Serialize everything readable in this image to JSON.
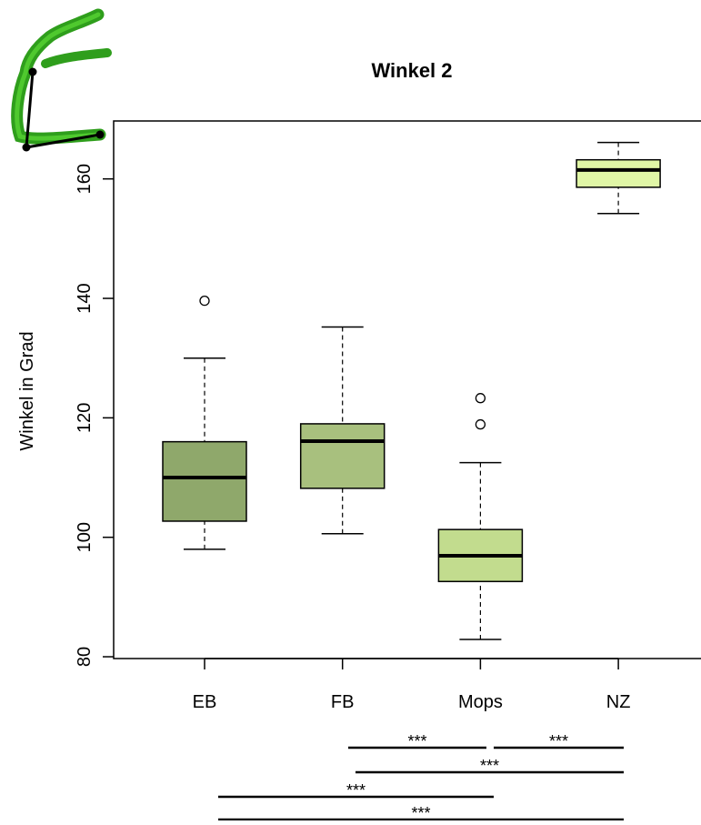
{
  "chart_data": {
    "type": "box",
    "title": "Winkel 2",
    "y_label": "Winkel in Grad",
    "categories": [
      "EB",
      "FB",
      "Mops",
      "NZ"
    ],
    "colors": [
      "#8fa86b",
      "#a8c07e",
      "#c2dc8e",
      "#e0f6a6"
    ],
    "whisker_low": [
      98,
      100.6,
      82.9,
      154.2
    ],
    "q1": [
      102.7,
      108.2,
      92.6,
      158.6
    ],
    "median": [
      110,
      116.1,
      96.9,
      161.5
    ],
    "q3": [
      116,
      119,
      101.3,
      163.2
    ],
    "whisker_high": [
      130,
      135.2,
      112.5,
      166.1
    ],
    "outliers": [
      [
        139.6
      ],
      [],
      [
        118.9,
        123.3
      ],
      []
    ],
    "ylim": [
      79.7,
      169.7
    ],
    "yticks": [
      80,
      100,
      120,
      140,
      160
    ],
    "annotations": [
      "***",
      "***",
      "***",
      "***",
      "***"
    ]
  }
}
